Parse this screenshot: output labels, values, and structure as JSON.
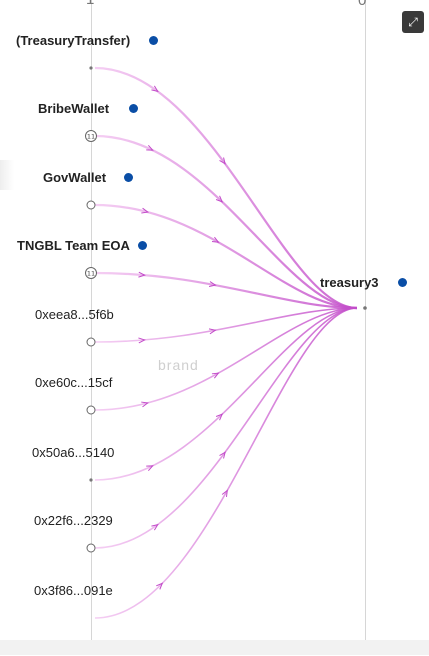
{
  "axis": {
    "left_top": "1",
    "left_bottom": "-1",
    "right_top": "0",
    "right_bottom": "0"
  },
  "watermark": "brand",
  "target": {
    "label": "treasury3",
    "color": "#0a4ea6"
  },
  "sources": [
    {
      "label": "(TreasuryTransfer)",
      "bold": true,
      "dot": true,
      "marker": "dot"
    },
    {
      "label": "BribeWallet",
      "bold": true,
      "dot": true,
      "marker": "badge",
      "badge": "11"
    },
    {
      "label": "GovWallet",
      "bold": true,
      "dot": true,
      "marker": "ring"
    },
    {
      "label": "TNGBL Team EOA",
      "bold": true,
      "dot": true,
      "marker": "badge",
      "badge": "11"
    },
    {
      "label": "0xeea8...5f6b",
      "bold": false,
      "dot": false,
      "marker": "ring"
    },
    {
      "label": "0xe60c...15cf",
      "bold": false,
      "dot": false,
      "marker": "ring"
    },
    {
      "label": "0x50a6...5140",
      "bold": false,
      "dot": false,
      "marker": "dot"
    },
    {
      "label": "0x22f6...2329",
      "bold": false,
      "dot": false,
      "marker": "ring"
    },
    {
      "label": "0x3f86...091e",
      "bold": false,
      "dot": false,
      "marker": "none"
    }
  ],
  "colors": {
    "edge": "#c24bc9",
    "edge_light": "#f3c6f1",
    "node_dot": "#0a4ea6"
  },
  "controls": {
    "expand_icon": "expand-icon"
  }
}
